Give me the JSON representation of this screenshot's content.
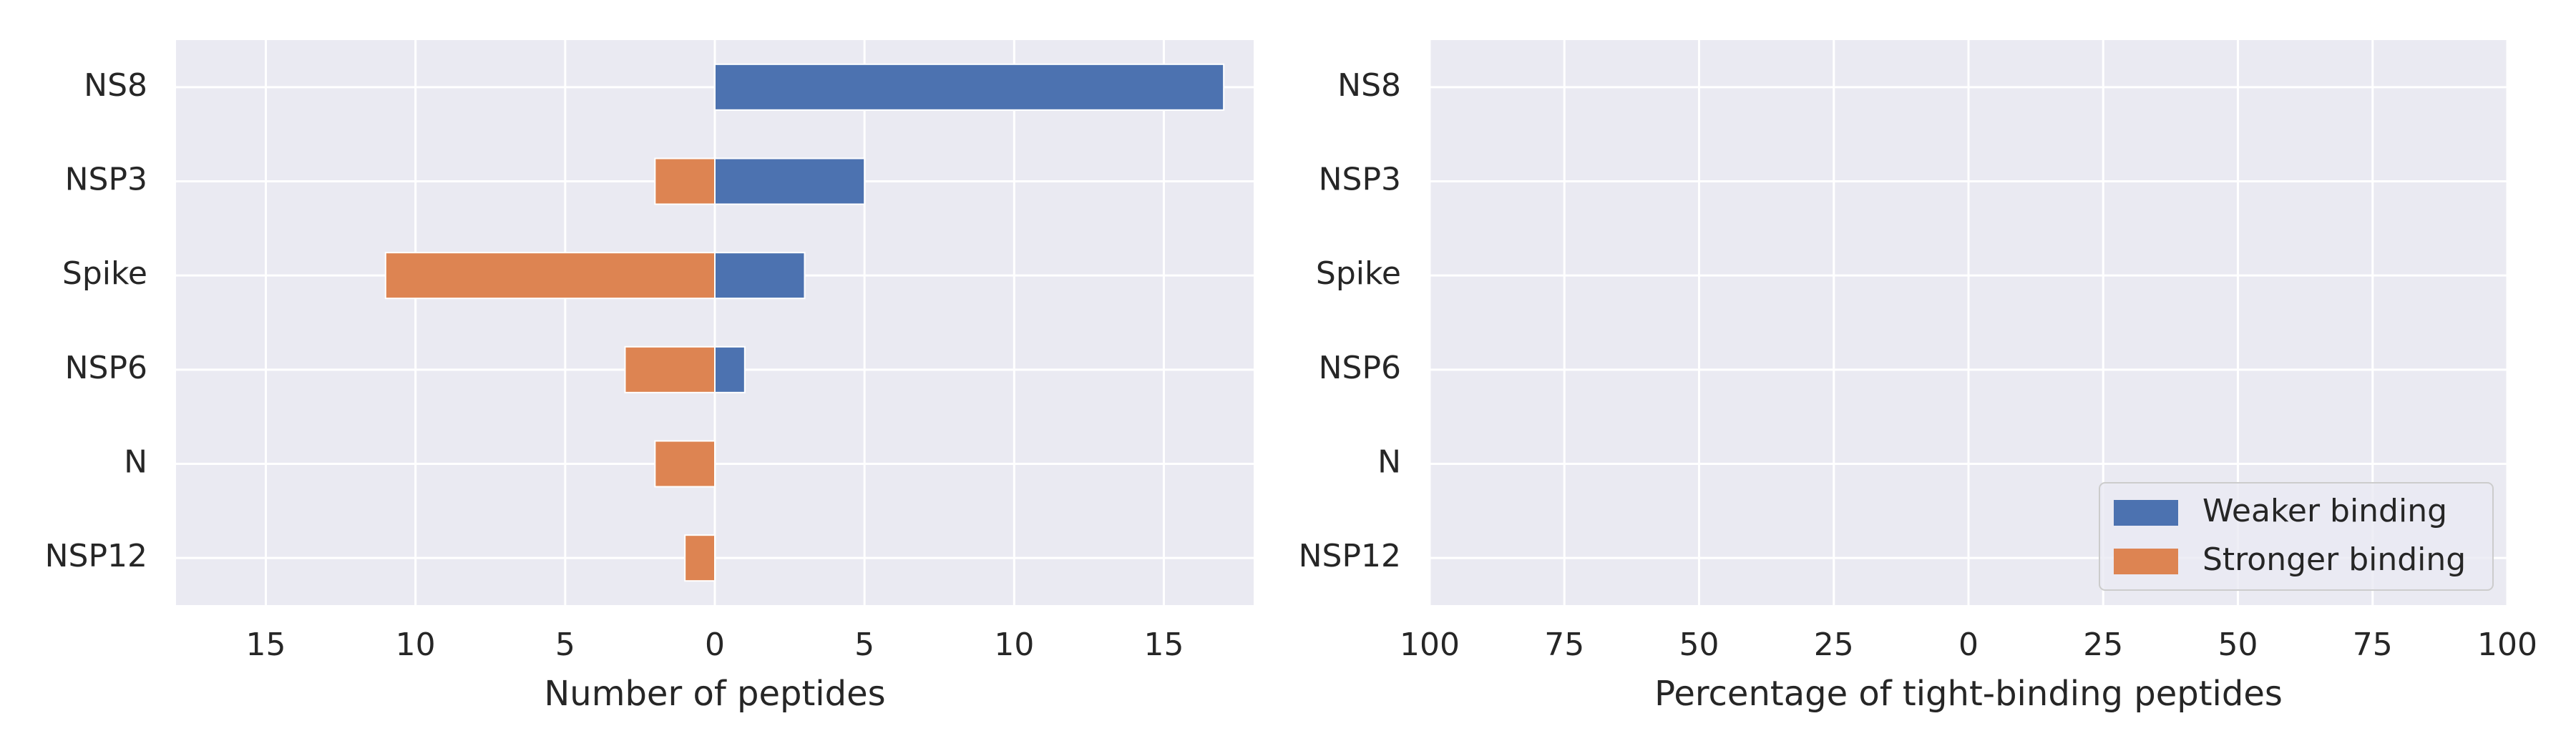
{
  "chart_data": [
    {
      "type": "bar",
      "orientation": "horizontal",
      "categories": [
        "NS8",
        "NSP3",
        "Spike",
        "NSP6",
        "N",
        "NSP12"
      ],
      "series": [
        {
          "name": "Weaker binding",
          "color": "#4c72b0",
          "values": [
            17,
            5,
            3,
            1,
            0,
            0
          ]
        },
        {
          "name": "Stronger binding",
          "color": "#dd8452",
          "values": [
            0,
            2,
            11,
            3,
            2,
            1
          ]
        }
      ],
      "xlabel": "Number of peptides",
      "xlim": [
        -18,
        18
      ],
      "xticks": [
        -15,
        -10,
        -5,
        0,
        5,
        10,
        15
      ],
      "xtick_labels": [
        "15",
        "10",
        "5",
        "0",
        "5",
        "10",
        "15"
      ],
      "grid": true,
      "background": "#eaeaf2"
    },
    {
      "type": "bar",
      "orientation": "horizontal",
      "categories": [
        "NS8",
        "NSP3",
        "Spike",
        "NSP6",
        "N",
        "NSP12"
      ],
      "series": [
        {
          "name": "Weaker binding",
          "color": "#4c72b0",
          "values": [
            0,
            0,
            0,
            0,
            0,
            0
          ]
        },
        {
          "name": "Stronger binding",
          "color": "#dd8452",
          "values": [
            0,
            0,
            0,
            0,
            0,
            0
          ]
        }
      ],
      "xlabel": "Percentage of tight-binding peptides",
      "xlim": [
        -100,
        100
      ],
      "xticks": [
        -100,
        -75,
        -50,
        -25,
        0,
        25,
        50,
        75,
        100
      ],
      "xtick_labels": [
        "100",
        "75",
        "50",
        "25",
        "0",
        "25",
        "50",
        "75",
        "100"
      ],
      "grid": true,
      "background": "#eaeaf2",
      "legend": {
        "placement": "lower-right",
        "entries": [
          "Weaker binding",
          "Stronger binding"
        ]
      }
    }
  ]
}
